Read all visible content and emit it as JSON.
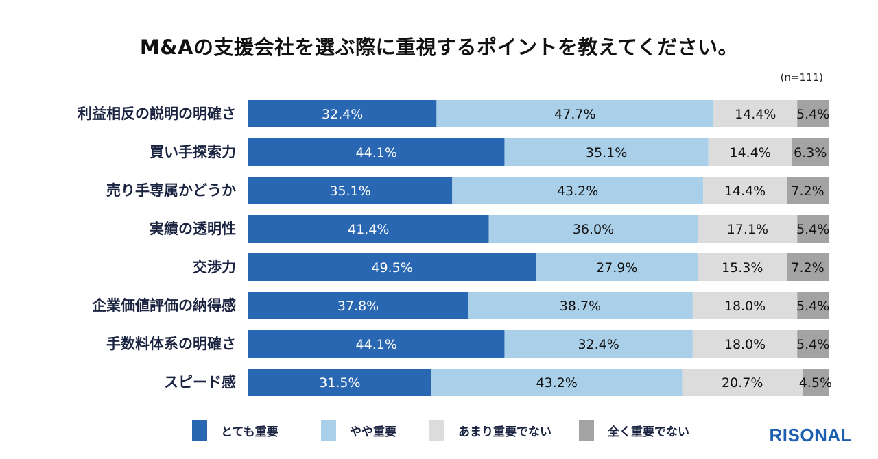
{
  "chart_data": {
    "type": "bar",
    "orientation": "horizontal",
    "stacked": true,
    "title": "M&Aの支援会社を選ぶ際に重視するポイントを教えてください。",
    "sample_note": "(n=111)",
    "xlabel": "",
    "ylabel": "",
    "xlim": [
      0,
      100
    ],
    "grid": false,
    "legend_position": "bottom",
    "categories": [
      "利益相反の説明の明確さ",
      "買い手探索力",
      "売り手専属かどうか",
      "実績の透明性",
      "交渉力",
      "企業価値評価の納得感",
      "手数料体系の明確さ",
      "スピード感"
    ],
    "series": [
      {
        "name": "とても重要",
        "color": "#2a67b3",
        "text_color": "#ffffff",
        "values": [
          32.4,
          44.1,
          35.1,
          41.4,
          49.5,
          37.8,
          44.1,
          31.5
        ],
        "labels": [
          "32.4%",
          "44.1%",
          "35.1%",
          "41.4%",
          "49.5%",
          "37.8%",
          "44.1%",
          "31.5%"
        ]
      },
      {
        "name": "やや重要",
        "color": "#a9d0e8",
        "text_color": "#111111",
        "values": [
          47.7,
          35.1,
          43.2,
          36.0,
          27.9,
          38.7,
          32.4,
          43.2
        ],
        "labels": [
          "47.7%",
          "35.1%",
          "43.2%",
          "36.0%",
          "27.9%",
          "38.7%",
          "32.4%",
          "43.2%"
        ]
      },
      {
        "name": "あまり重要でない",
        "color": "#dcdcdc",
        "text_color": "#111111",
        "values": [
          14.4,
          14.4,
          14.4,
          17.1,
          15.3,
          18.0,
          18.0,
          20.7
        ],
        "labels": [
          "14.4%",
          "14.4%",
          "14.4%",
          "17.1%",
          "15.3%",
          "18.0%",
          "18.0%",
          "20.7%"
        ]
      },
      {
        "name": "全く重要でない",
        "color": "#a3a3a3",
        "text_color": "#111111",
        "values": [
          5.4,
          6.3,
          7.2,
          5.4,
          7.2,
          5.4,
          5.4,
          4.5
        ],
        "labels": [
          "5.4%",
          "6.3%",
          "7.2%",
          "5.4%",
          "7.2%",
          "5.4%",
          "5.4%",
          "4.5%"
        ]
      }
    ]
  },
  "brand": {
    "logo_text": "RISONAL",
    "color": "#1d5fb0"
  }
}
